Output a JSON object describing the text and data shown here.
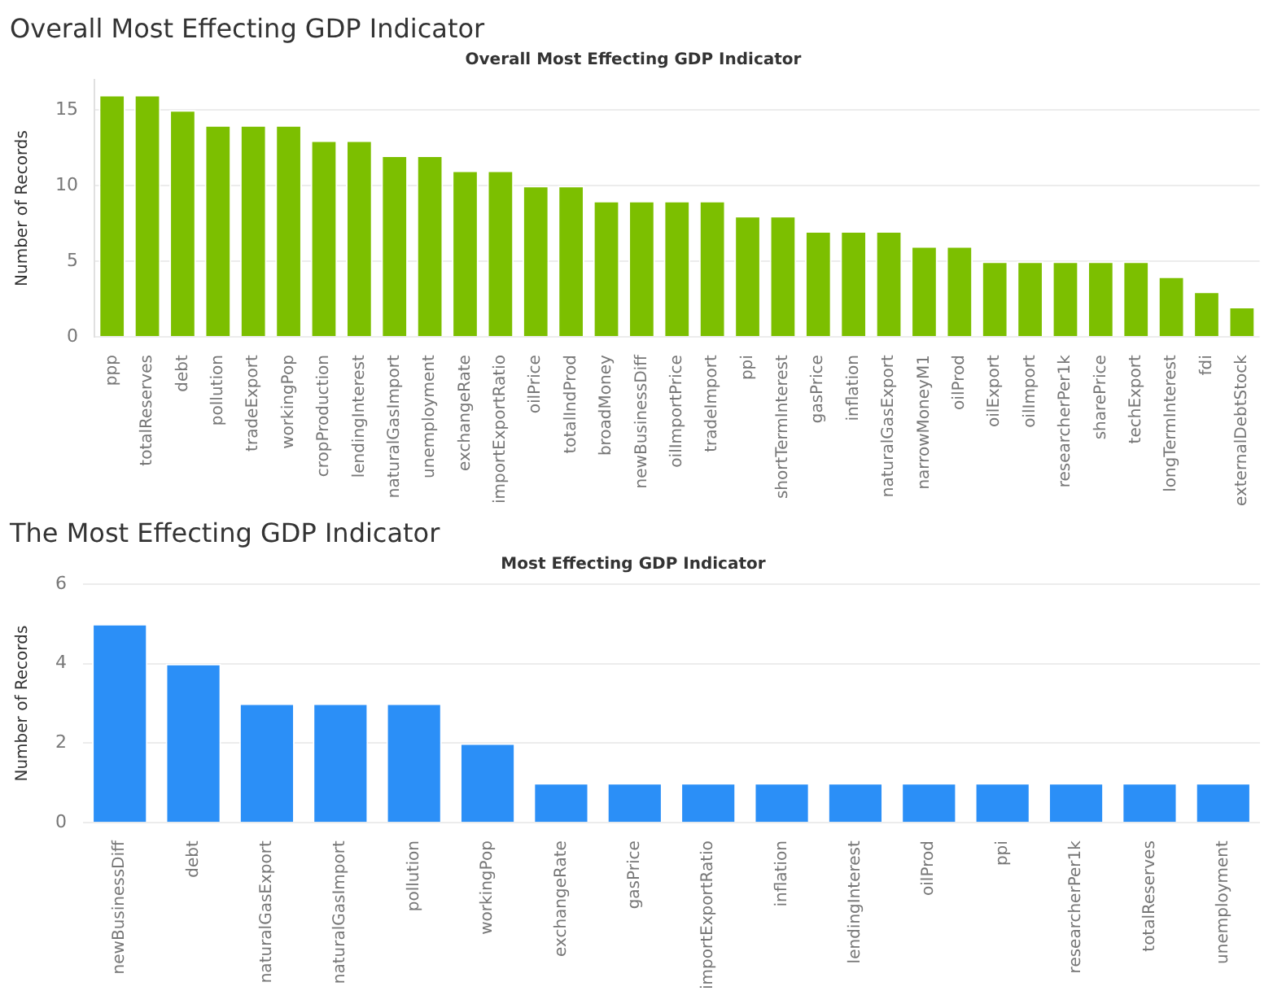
{
  "chart_data": [
    {
      "type": "bar",
      "title": "Overall Most Effecting GDP Indicator",
      "subtitle": "Overall Most Effecting GDP Indicator",
      "ylabel": "Number of Records",
      "categories": [
        "ppp",
        "totalReserves",
        "debt",
        "pollution",
        "tradeExport",
        "workingPop",
        "cropProduction",
        "lendingInterest",
        "naturalGasImport",
        "unemployment",
        "exchangeRate",
        "importExportRatio",
        "oilPrice",
        "totalIndProd",
        "broadMoney",
        "newBusinessDiff",
        "oilImportPrice",
        "tradeImport",
        "ppi",
        "shortTermInterest",
        "gasPrice",
        "inflation",
        "naturalGasExport",
        "narrowMoneyM1",
        "oilProd",
        "oilExport",
        "oilImport",
        "researcherPer1k",
        "sharePrice",
        "techExport",
        "longTermInterest",
        "fdi",
        "externalDebtStock"
      ],
      "values": [
        16,
        16,
        15,
        14,
        14,
        14,
        13,
        13,
        12,
        12,
        11,
        11,
        10,
        10,
        9,
        9,
        9,
        9,
        8,
        8,
        7,
        7,
        7,
        6,
        6,
        5,
        5,
        5,
        5,
        5,
        4,
        3,
        2
      ],
      "color": "#7cbf00",
      "ylim": [
        0,
        17
      ],
      "yticks": [
        0,
        5,
        10,
        15
      ],
      "grid": "y"
    },
    {
      "type": "bar",
      "title": "The Most Effecting GDP Indicator",
      "subtitle": "Most Effecting GDP Indicator",
      "ylabel": "Number of Records",
      "categories": [
        "newBusinessDiff",
        "debt",
        "naturalGasExport",
        "naturalGasImport",
        "pollution",
        "workingPop",
        "exchangeRate",
        "gasPrice",
        "importExportRatio",
        "inflation",
        "lendingInterest",
        "oilProd",
        "ppi",
        "researcherPer1k",
        "totalReserves",
        "unemployment"
      ],
      "values": [
        5,
        4,
        3,
        3,
        3,
        2,
        1,
        1,
        1,
        1,
        1,
        1,
        1,
        1,
        1,
        1
      ],
      "color": "#2b8ff7",
      "ylim": [
        0,
        6
      ],
      "yticks": [
        0,
        2,
        4,
        6
      ],
      "grid": "y"
    }
  ]
}
